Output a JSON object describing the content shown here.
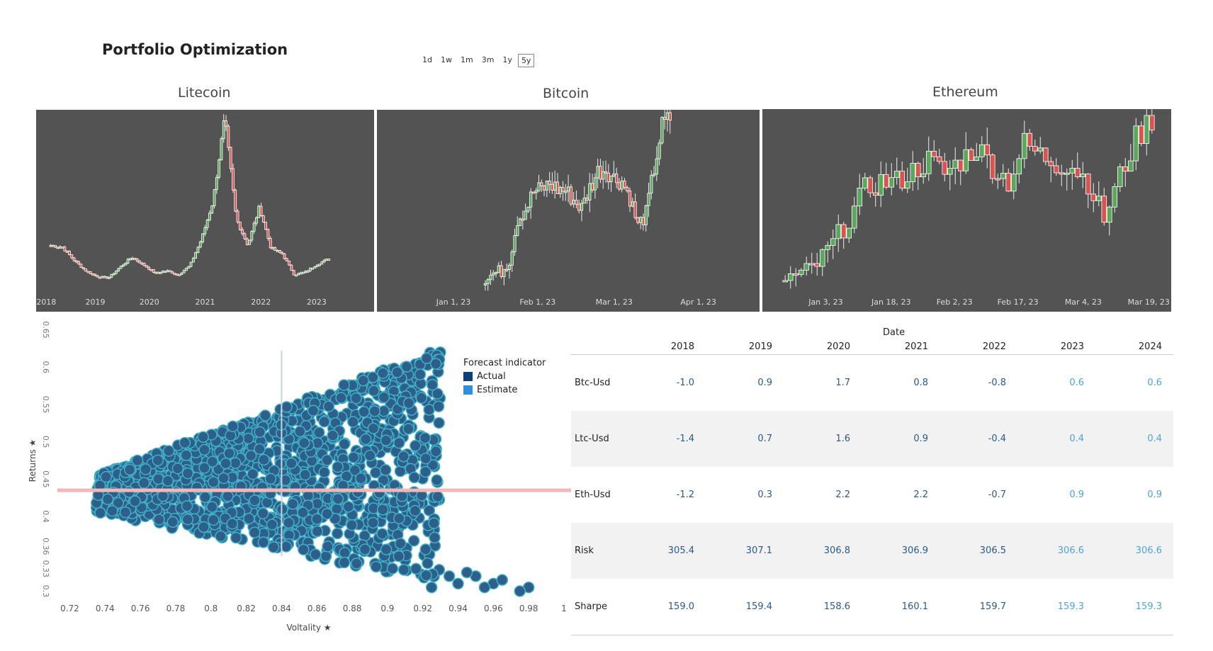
{
  "header": {
    "title": "Portfolio Optimization",
    "ranges": [
      "1d",
      "1w",
      "1m",
      "3m",
      "1y",
      "5y"
    ],
    "active_range": "5y"
  },
  "colors": {
    "panel_bg": "#535353",
    "up": "#5aa85a",
    "down": "#d9534f",
    "scatter": "#2e5f8a",
    "scatter_edge": "#3fb0c8",
    "actual": "#0d3f7a",
    "estimate": "#2f8fdd",
    "actual_text": "#2a5a8c",
    "estimate_text": "#4fa3dc"
  },
  "chart_data": [
    {
      "type": "candlestick",
      "title": "Litecoin",
      "x_ticks": [
        "2018",
        "2019",
        "2020",
        "2021",
        "2022",
        "2023"
      ],
      "close_series_shape": [
        95,
        92,
        70,
        52,
        42,
        40,
        58,
        75,
        62,
        48,
        52,
        45,
        60,
        105,
        170,
        310,
        140,
        95,
        160,
        90,
        80,
        45,
        50,
        63,
        72
      ]
    },
    {
      "type": "candlestick",
      "title": "Bitcoin",
      "x_ticks": [
        "Jan 1, 23",
        "Feb 1, 23",
        "Mar 1, 23",
        "Apr 1, 23"
      ],
      "close_series_shape": [
        16500,
        16800,
        17000,
        17800,
        20800,
        21500,
        22800,
        23000,
        23400,
        23000,
        22900,
        22200,
        21600,
        23100,
        24300,
        24500,
        23800,
        23600,
        22400,
        20300,
        21200,
        24500,
        27600,
        28200
      ]
    },
    {
      "type": "candlestick",
      "title": "Ethereum",
      "x_ticks": [
        "Jan 3, 23",
        "Jan 18, 23",
        "Feb 2, 23",
        "Feb 17, 23",
        "Mar 4, 23",
        "Mar 19, 23"
      ],
      "close_series_shape": [
        1200,
        1210,
        1250,
        1330,
        1420,
        1530,
        1560,
        1560,
        1600,
        1640,
        1590,
        1640,
        1690,
        1620,
        1560,
        1700,
        1660,
        1630,
        1620,
        1560,
        1420,
        1580,
        1720,
        1800
      ]
    },
    {
      "type": "scatter",
      "xlabel": "Voltality",
      "ylabel": "Returns",
      "x_ticks": [
        "0.72",
        "0.74",
        "0.76",
        "0.78",
        "0.8",
        "0.82",
        "0.84",
        "0.86",
        "0.88",
        "0.9",
        "0.92",
        "0.94",
        "0.96",
        "0.98",
        "1"
      ],
      "y_ticks": [
        "0.3",
        "0.33",
        "0.36",
        "0.4",
        "0.45",
        "0.5",
        "0.55",
        "0.6",
        "0.65"
      ],
      "xlim": [
        0.715,
        1.0
      ],
      "ylim": [
        0.29,
        0.66
      ],
      "ref_x": 0.84,
      "ref_y": 0.435,
      "legend_title": "Forecast indicator",
      "legend": [
        "Actual",
        "Estimate"
      ]
    },
    {
      "type": "table",
      "column_header": "Date",
      "years": [
        "2018",
        "2019",
        "2020",
        "2021",
        "2022",
        "2023",
        "2024"
      ],
      "rows": [
        {
          "label": "Btc-Usd",
          "values": [
            "-1.0",
            "0.9",
            "1.7",
            "0.8",
            "-0.8",
            "0.6",
            "0.6"
          ]
        },
        {
          "label": "Ltc-Usd",
          "values": [
            "-1.4",
            "0.7",
            "1.6",
            "0.9",
            "-0.4",
            "0.4",
            "0.4"
          ]
        },
        {
          "label": "Eth-Usd",
          "values": [
            "-1.2",
            "0.3",
            "2.2",
            "2.2",
            "-0.7",
            "0.9",
            "0.9"
          ]
        },
        {
          "label": "Risk",
          "values": [
            "305.4",
            "307.1",
            "306.8",
            "306.9",
            "306.5",
            "306.6",
            "306.6"
          ]
        },
        {
          "label": "Sharpe",
          "values": [
            "159.0",
            "159.4",
            "158.6",
            "160.1",
            "159.7",
            "159.3",
            "159.3"
          ]
        }
      ],
      "estimate_from_index": 5
    }
  ]
}
